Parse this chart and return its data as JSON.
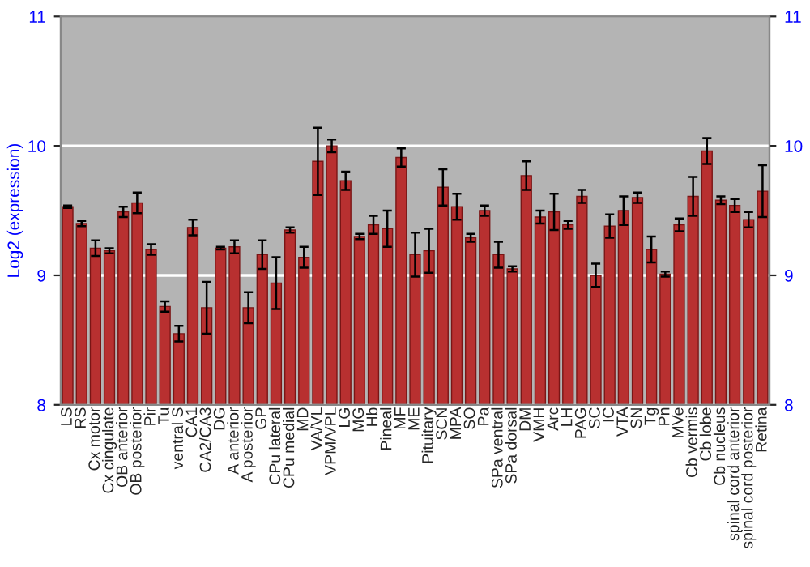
{
  "chart_data": {
    "type": "bar",
    "ylabel": "Log2 (expression)",
    "categories": [
      "LS",
      "RS",
      "Cx motor",
      "Cx cingulate",
      "OB anterior",
      "OB posterior",
      "Pir",
      "Tu",
      "ventral S",
      "CA1",
      "CA2/CA3",
      "DG",
      "A anterior",
      "A posterior",
      "GP",
      "CPu lateral",
      "CPu medial",
      "MD",
      "VA/VL",
      "VPM/VPL",
      "LG",
      "MG",
      "Hb",
      "Pineal",
      "MF",
      "ME",
      "Pituitary",
      "SCN",
      "MPA",
      "SO",
      "Pa",
      "SPa ventral",
      "SPa dorsal",
      "DM",
      "VMH",
      "Arc",
      "LH",
      "PAG",
      "SC",
      "IC",
      "VTA",
      "SN",
      "Tg",
      "Pn",
      "MVe",
      "Cb vermis",
      "Cb lobe",
      "Cb nucleus",
      "spinal cord anterior",
      "spinal cord posterior",
      "Retina"
    ],
    "series": [
      {
        "color": "#b83030",
        "values": [
          9.53,
          9.4,
          9.21,
          9.19,
          9.49,
          9.56,
          9.2,
          8.76,
          8.55,
          9.37,
          8.75,
          9.21,
          9.22,
          8.75,
          9.16,
          8.94,
          9.35,
          9.14,
          9.88,
          10.0,
          9.73,
          9.3,
          9.39,
          9.36,
          9.91,
          9.16,
          9.19,
          9.68,
          9.53,
          9.29,
          9.5,
          9.16,
          9.05,
          9.77,
          9.45,
          9.49,
          9.39,
          9.61,
          9.0,
          9.38,
          9.5,
          9.6,
          9.2,
          9.01,
          9.39,
          9.61,
          9.96,
          9.58,
          9.54,
          9.43,
          9.65
        ],
        "errors": [
          0.01,
          0.02,
          0.06,
          0.02,
          0.04,
          0.08,
          0.04,
          0.04,
          0.06,
          0.06,
          0.2,
          0.01,
          0.05,
          0.12,
          0.11,
          0.2,
          0.02,
          0.08,
          0.26,
          0.05,
          0.07,
          0.02,
          0.07,
          0.14,
          0.07,
          0.17,
          0.17,
          0.14,
          0.1,
          0.03,
          0.04,
          0.1,
          0.02,
          0.11,
          0.05,
          0.14,
          0.03,
          0.05,
          0.09,
          0.09,
          0.11,
          0.04,
          0.1,
          0.02,
          0.05,
          0.15,
          0.1,
          0.03,
          0.05,
          0.06,
          0.2
        ]
      }
    ],
    "ylim": [
      8,
      11
    ],
    "yticks": [
      8,
      9,
      10,
      11
    ],
    "y2lim": [
      8,
      11
    ],
    "y2ticks": [
      8,
      9,
      10,
      11
    ],
    "grid": "y"
  }
}
